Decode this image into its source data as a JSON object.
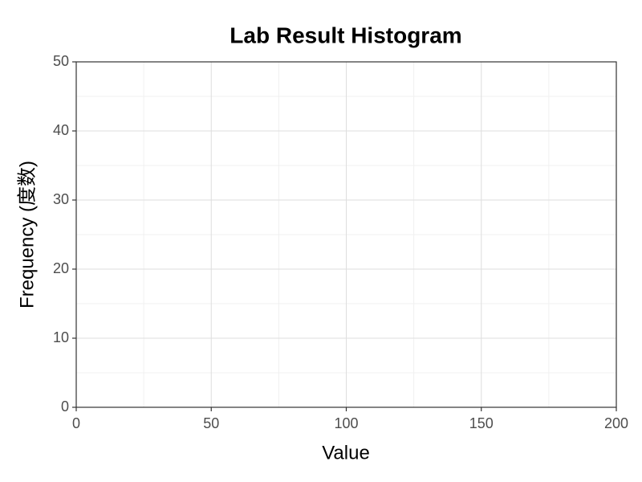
{
  "chart_data": {
    "type": "histogram",
    "title": "Lab Result Histogram",
    "xlabel": "Value",
    "ylabel": "Frequency (度数)",
    "xlim": [
      0,
      200
    ],
    "xticks": [
      0,
      50,
      100,
      150,
      200
    ],
    "ylim": [
      0,
      50
    ],
    "yticks": [
      0,
      10,
      20,
      30,
      40,
      50
    ],
    "grid": true
  }
}
